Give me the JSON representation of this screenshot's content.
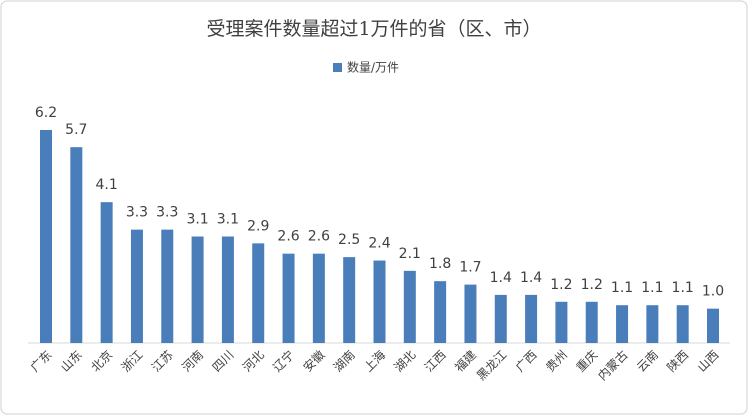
{
  "chart_data": {
    "type": "bar",
    "title": "受理案件数量超过1万件的省（区、市）",
    "categories": [
      "广东",
      "山东",
      "北京",
      "浙江",
      "江苏",
      "河南",
      "四川",
      "河北",
      "辽宁",
      "安徽",
      "湖南",
      "上海",
      "湖北",
      "江西",
      "福建",
      "黑龙江",
      "广西",
      "贵州",
      "重庆",
      "内蒙古",
      "云南",
      "陕西",
      "山西"
    ],
    "series": [
      {
        "name": "数量/万件",
        "color": "#4a7ebb",
        "values": [
          6.2,
          5.7,
          4.1,
          3.3,
          3.3,
          3.1,
          3.1,
          2.9,
          2.6,
          2.6,
          2.5,
          2.4,
          2.1,
          1.8,
          1.7,
          1.4,
          1.4,
          1.2,
          1.2,
          1.1,
          1.1,
          1.1,
          1.0
        ],
        "value_labels": [
          "6.2",
          "5.7",
          "4.1",
          "3.3",
          "3.3",
          "3.1",
          "3.1",
          "2.9",
          "2.6",
          "2.6",
          "2.5",
          "2.4",
          "2.1",
          "1.8",
          "1.7",
          "1.4",
          "1.4",
          "1.2",
          "1.2",
          "1.1",
          "1.1",
          "1.1",
          "1.0"
        ]
      }
    ],
    "legend": "top"
  }
}
